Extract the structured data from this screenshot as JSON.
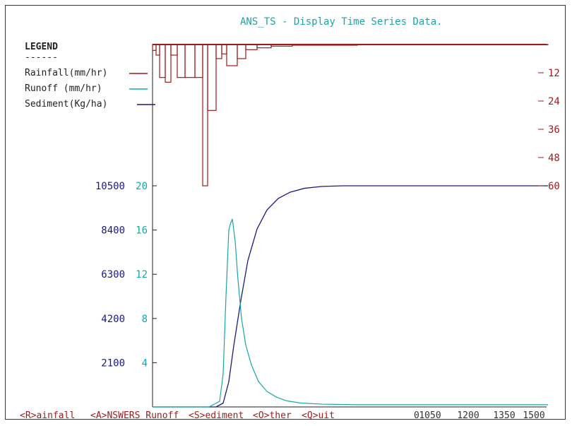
{
  "title": "ANS_TS - Display Time Series Data.",
  "colors": {
    "title": "#1aa6a6",
    "rain": "#9b1c1c",
    "runoff": "#1aa6a6",
    "sediment": "#1a1a80",
    "menu": "#9b1c1c",
    "text": "#222222"
  },
  "legend": {
    "heading": "LEGEND",
    "underline": "------",
    "rain_label": "Rainfall(mm/hr)",
    "runoff_label": "Runoff  (mm/hr)",
    "sediment_label": "Sediment(Kg/ha)"
  },
  "menu": {
    "rainfall": "<R>ainfall",
    "answers": "<A>NSWERS Runoff",
    "sediment": "<S>ediment",
    "other": "<O>ther",
    "quit": "<Q>uit"
  },
  "chart_data": {
    "type": "line",
    "x_tick_labels": [
      "0",
      "1050",
      "1200",
      "1350",
      "1500"
    ],
    "rain_axis": {
      "ticks": [
        12,
        24,
        36,
        48,
        60
      ],
      "range": [
        0,
        60
      ],
      "inverted": true
    },
    "runoff_axis": {
      "ticks": [
        4,
        8,
        12,
        16,
        20
      ],
      "range": [
        0,
        20
      ]
    },
    "sediment_axis": {
      "ticks": [
        2100,
        4200,
        6300,
        8400,
        10500
      ],
      "range": [
        0,
        10500
      ]
    },
    "rainfall_bars": [
      {
        "x0": 0,
        "x1": 5,
        "value": 2.5
      },
      {
        "x0": 5,
        "x1": 10,
        "value": 4.5
      },
      {
        "x0": 10,
        "x1": 18,
        "value": 14
      },
      {
        "x0": 18,
        "x1": 26,
        "value": 16
      },
      {
        "x0": 26,
        "x1": 35,
        "value": 4.5
      },
      {
        "x0": 35,
        "x1": 46,
        "value": 14
      },
      {
        "x0": 46,
        "x1": 60,
        "value": 14
      },
      {
        "x0": 60,
        "x1": 71,
        "value": 14
      },
      {
        "x0": 71,
        "x1": 78,
        "value": 60
      },
      {
        "x0": 78,
        "x1": 90,
        "value": 28
      },
      {
        "x0": 90,
        "x1": 98,
        "value": 6
      },
      {
        "x0": 98,
        "x1": 105,
        "value": 4
      },
      {
        "x0": 105,
        "x1": 120,
        "value": 9
      },
      {
        "x0": 120,
        "x1": 132,
        "value": 6
      },
      {
        "x0": 132,
        "x1": 148,
        "value": 2.2
      },
      {
        "x0": 148,
        "x1": 168,
        "value": 1.4
      },
      {
        "x0": 168,
        "x1": 198,
        "value": 0.7
      },
      {
        "x0": 198,
        "x1": 290,
        "value": 0.3
      },
      {
        "x0": 290,
        "x1": 560,
        "value": 0.1
      }
    ],
    "runoff_series": {
      "x": [
        0,
        80,
        95,
        100,
        104,
        108,
        110,
        113,
        117,
        121,
        126,
        132,
        140,
        150,
        162,
        175,
        190,
        210,
        240,
        290,
        360,
        560
      ],
      "y": [
        0,
        0,
        0.5,
        3,
        10,
        16,
        16.5,
        17,
        15,
        11.5,
        8,
        5.6,
        3.8,
        2.3,
        1.4,
        0.9,
        0.55,
        0.35,
        0.25,
        0.2,
        0.2,
        0.2
      ]
    },
    "sediment_series": {
      "x": [
        0,
        90,
        100,
        108,
        115,
        125,
        135,
        148,
        162,
        178,
        195,
        215,
        240,
        270,
        290,
        560
      ],
      "y": [
        0,
        0,
        180,
        1200,
        2900,
        5050,
        6950,
        8450,
        9350,
        9900,
        10200,
        10380,
        10470,
        10500,
        10500,
        10500
      ]
    }
  }
}
